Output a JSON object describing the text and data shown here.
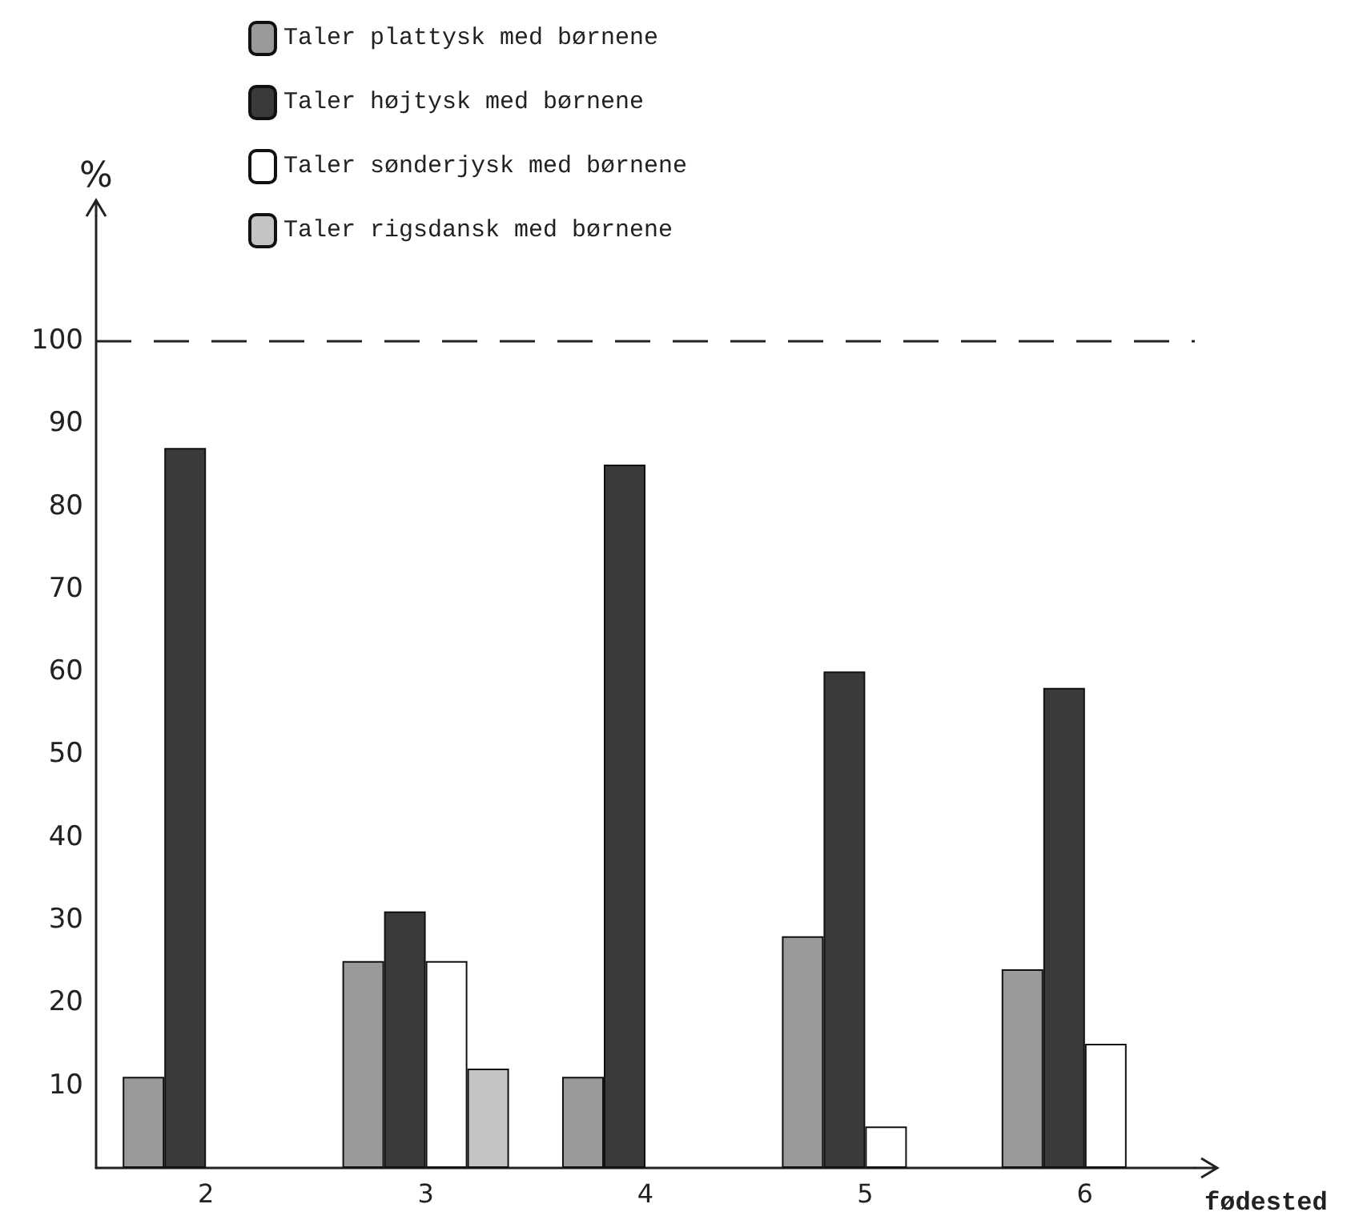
{
  "chart_data": {
    "type": "bar",
    "xlabel": "fødested",
    "ylabel": "%",
    "categories": [
      "2",
      "3",
      "4",
      "5",
      "6"
    ],
    "series": [
      {
        "name": "Taler plattysk med børnene",
        "color": "#9a9a9a",
        "values": [
          11,
          25,
          11,
          28,
          24
        ]
      },
      {
        "name": "Taler højtysk med børnene",
        "color": "#3a3a3a",
        "values": [
          87,
          31,
          85,
          60,
          58
        ]
      },
      {
        "name": "Taler sønderjysk med børnene",
        "color": "#ffffff",
        "values": [
          null,
          25,
          null,
          5,
          15
        ]
      },
      {
        "name": "Taler rigsdansk med børnene",
        "color": "#c4c4c4",
        "values": [
          null,
          12,
          null,
          null,
          null
        ]
      }
    ],
    "ylim": [
      0,
      115
    ],
    "yticks": [
      10,
      20,
      30,
      40,
      50,
      60,
      70,
      80,
      90,
      100
    ],
    "grid": false,
    "legend": "top left",
    "ref_lines": [
      {
        "axis": "y",
        "value": 100,
        "line_style": "dashed",
        "color": "#222222"
      }
    ]
  }
}
